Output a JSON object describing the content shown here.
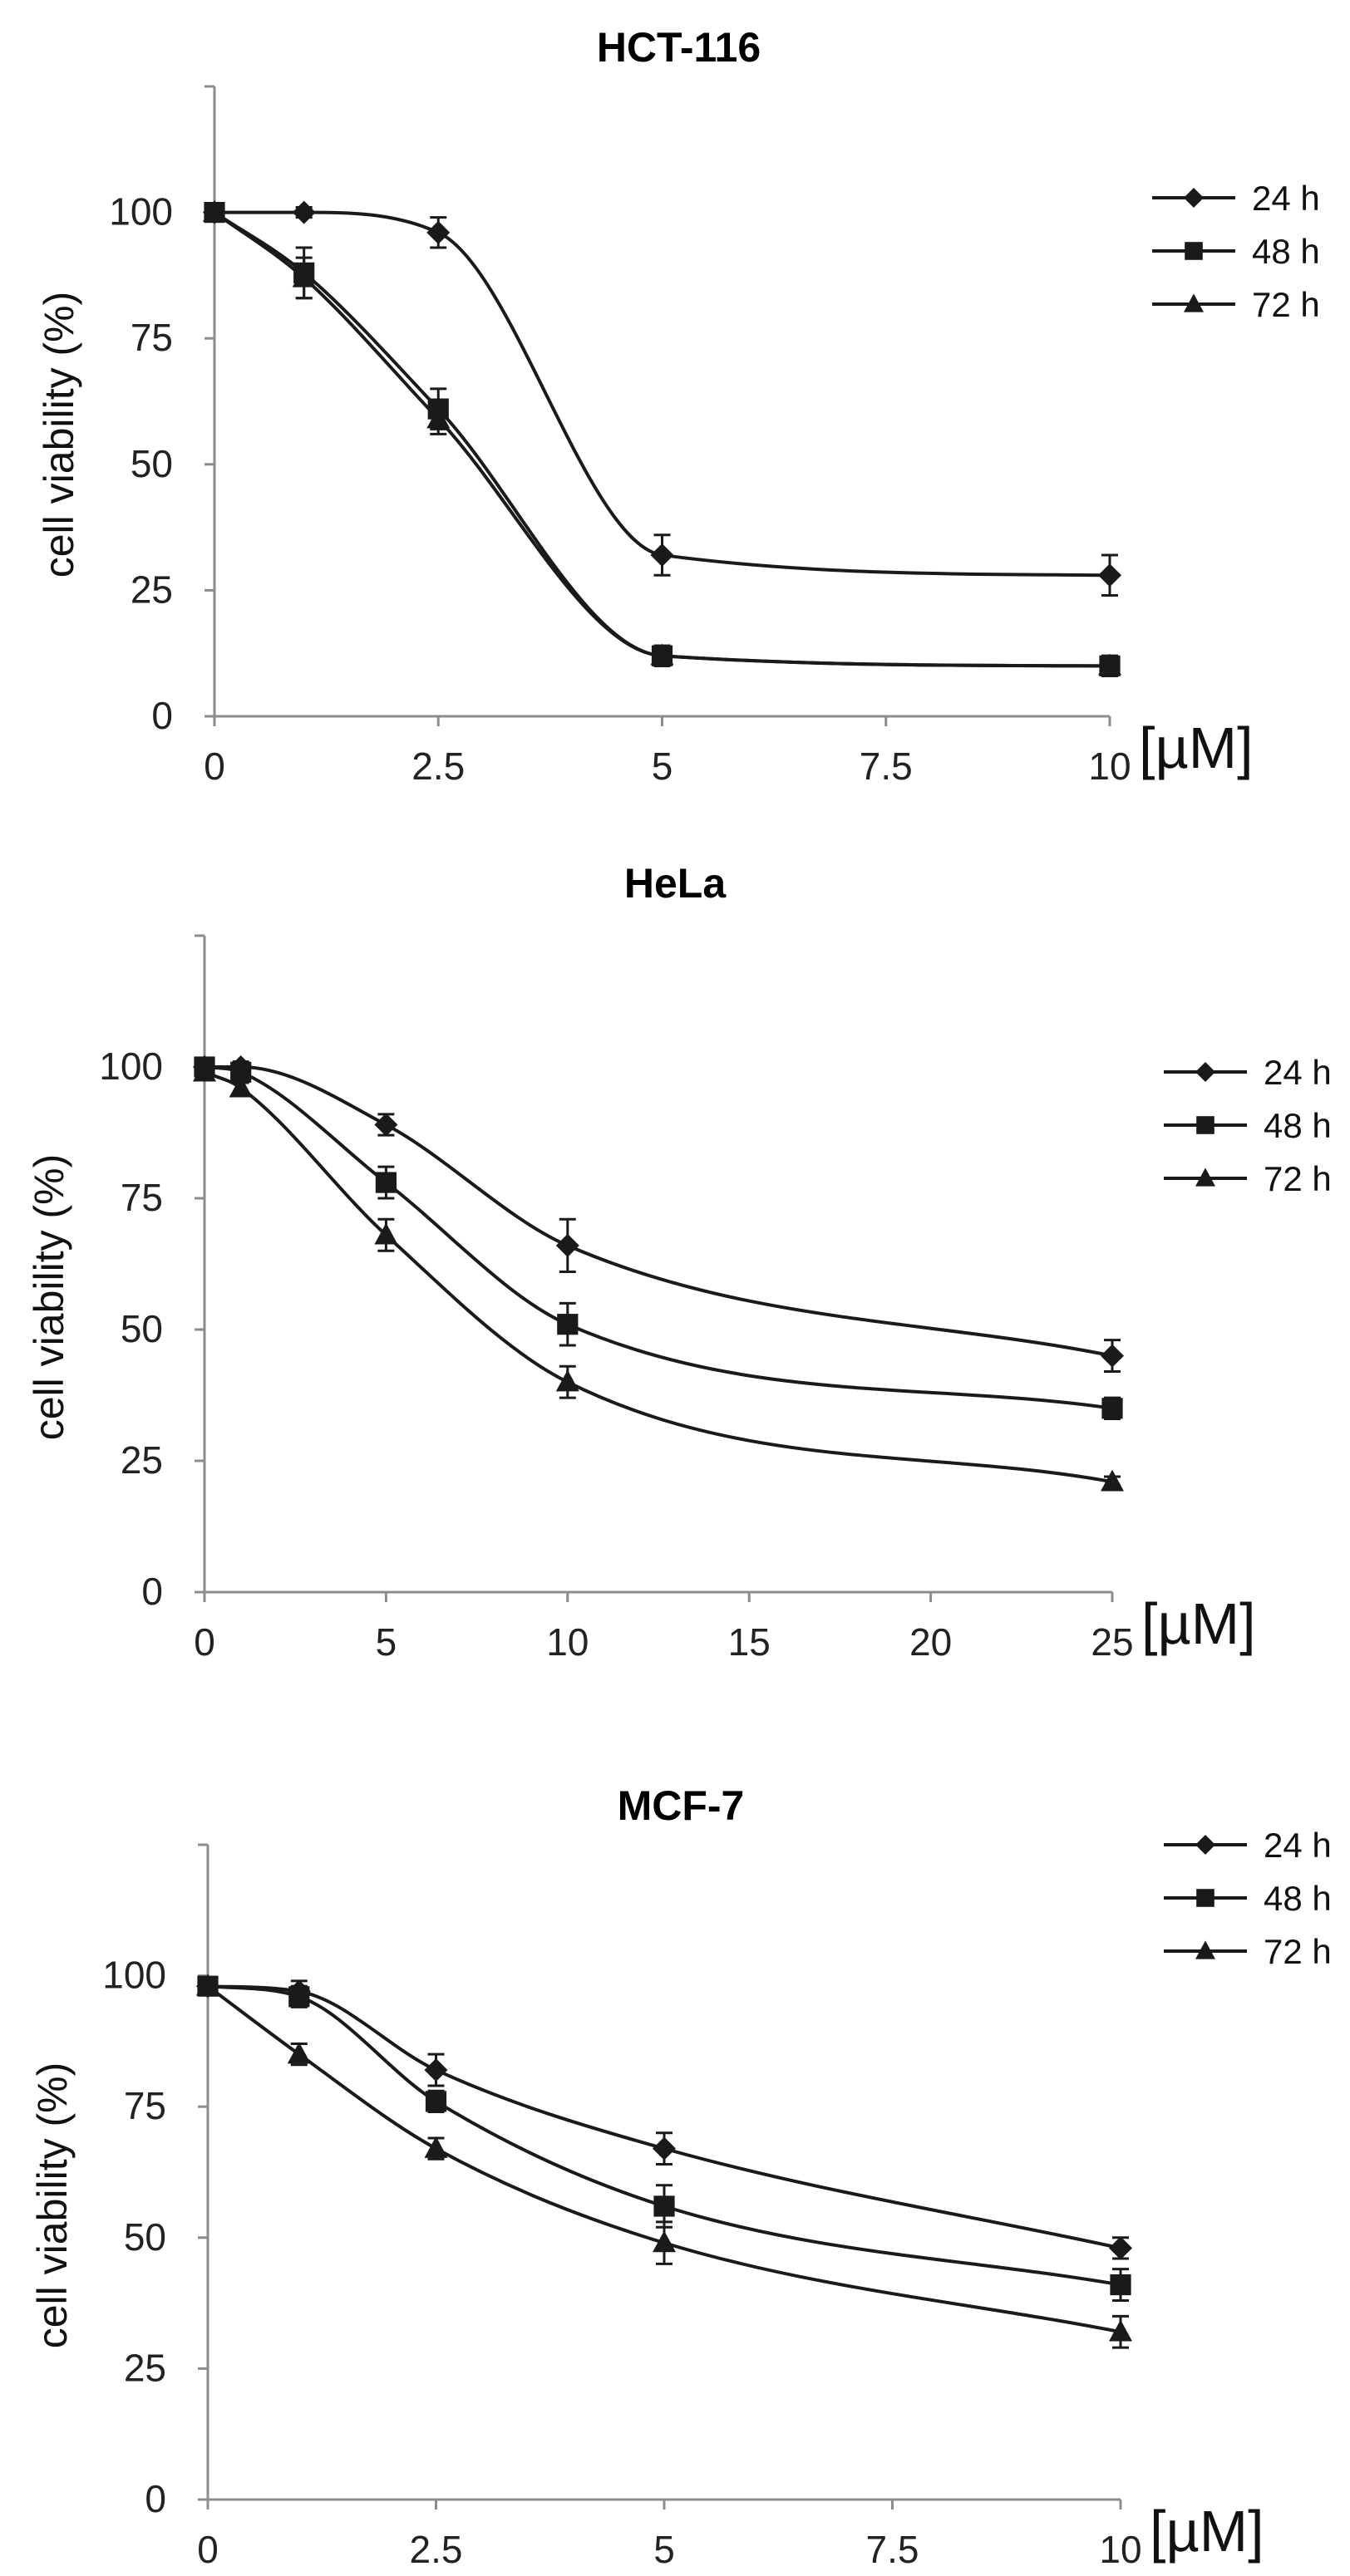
{
  "chart_data": [
    {
      "type": "line",
      "title": "HCT-116",
      "xlabel": "[µM]",
      "ylabel": "cell viability (%)",
      "xlim": [
        0,
        10
      ],
      "ylim": [
        0,
        125
      ],
      "x_ticks": [
        0,
        2.5,
        5,
        7.5,
        10
      ],
      "x_tick_labels": [
        "0",
        "2.5",
        "5",
        "7.5",
        "10"
      ],
      "y_ticks": [
        0,
        25,
        50,
        75,
        100
      ],
      "y_tick_labels": [
        "0",
        "25",
        "50",
        "75",
        "100"
      ],
      "grid": false,
      "legend_position": "top-right",
      "colors": {
        "line": "#1a1a1a",
        "axis": "#8c8c8c"
      },
      "series": [
        {
          "name": "24 h",
          "marker": "diamond",
          "x": [
            0,
            1,
            2.5,
            5,
            10
          ],
          "values": [
            100,
            100,
            96,
            32,
            28
          ],
          "errors": [
            1,
            1,
            3,
            4,
            4
          ]
        },
        {
          "name": "48 h",
          "marker": "square",
          "x": [
            0,
            1,
            2.5,
            5,
            10
          ],
          "values": [
            100,
            88,
            61,
            12,
            10
          ],
          "errors": [
            1,
            5,
            4,
            2,
            2
          ]
        },
        {
          "name": "72 h",
          "marker": "triangle",
          "x": [
            0,
            1,
            2.5,
            5,
            10
          ],
          "values": [
            100,
            87,
            59,
            12,
            10
          ],
          "errors": [
            1,
            4,
            3,
            2,
            2
          ]
        }
      ]
    },
    {
      "type": "line",
      "title": "HeLa",
      "xlabel": "[µM]",
      "ylabel": "cell viability (%)",
      "xlim": [
        0,
        25
      ],
      "ylim": [
        0,
        125
      ],
      "x_ticks": [
        0,
        5,
        10,
        15,
        20,
        25
      ],
      "x_tick_labels": [
        "0",
        "5",
        "10",
        "15",
        "20",
        "25"
      ],
      "y_ticks": [
        0,
        25,
        50,
        75,
        100
      ],
      "y_tick_labels": [
        "0",
        "25",
        "50",
        "75",
        "100"
      ],
      "grid": false,
      "legend_position": "top-right",
      "colors": {
        "line": "#1a1a1a",
        "axis": "#8c8c8c"
      },
      "series": [
        {
          "name": "24 h",
          "marker": "diamond",
          "x": [
            0,
            1,
            5,
            10,
            25
          ],
          "values": [
            100,
            100,
            89,
            66,
            45
          ],
          "errors": [
            1,
            1,
            2,
            5,
            3
          ]
        },
        {
          "name": "48 h",
          "marker": "square",
          "x": [
            0,
            1,
            5,
            10,
            25
          ],
          "values": [
            100,
            99,
            78,
            51,
            35
          ],
          "errors": [
            1,
            1,
            3,
            4,
            2
          ]
        },
        {
          "name": "72 h",
          "marker": "triangle",
          "x": [
            0,
            1,
            5,
            10,
            25
          ],
          "values": [
            99,
            96,
            68,
            40,
            21
          ],
          "errors": [
            1,
            1,
            3,
            3,
            1
          ]
        }
      ]
    },
    {
      "type": "line",
      "title": "MCF-7",
      "xlabel": "[µM]",
      "ylabel": "cell viability (%)",
      "xlim": [
        0,
        10
      ],
      "ylim": [
        0,
        125
      ],
      "x_ticks": [
        0,
        2.5,
        5,
        7.5,
        10
      ],
      "x_tick_labels": [
        "0",
        "2.5",
        "5",
        "7.5",
        "10"
      ],
      "y_ticks": [
        0,
        25,
        50,
        75,
        100
      ],
      "y_tick_labels": [
        "0",
        "25",
        "50",
        "75",
        "100"
      ],
      "grid": false,
      "legend_position": "top-right",
      "colors": {
        "line": "#1a1a1a",
        "axis": "#8c8c8c"
      },
      "series": [
        {
          "name": "24 h",
          "marker": "diamond",
          "x": [
            0,
            1,
            2.5,
            5,
            10
          ],
          "values": [
            98,
            97,
            82,
            67,
            48
          ],
          "errors": [
            1,
            2,
            3,
            3,
            2
          ]
        },
        {
          "name": "48 h",
          "marker": "square",
          "x": [
            0,
            1,
            2.5,
            5,
            10
          ],
          "values": [
            98,
            96,
            76,
            56,
            41
          ],
          "errors": [
            1,
            2,
            2,
            4,
            3
          ]
        },
        {
          "name": "72 h",
          "marker": "triangle",
          "x": [
            0,
            1,
            2.5,
            5,
            10
          ],
          "values": [
            98,
            85,
            67,
            49,
            32
          ],
          "errors": [
            1,
            2,
            2,
            4,
            3
          ]
        }
      ]
    }
  ]
}
